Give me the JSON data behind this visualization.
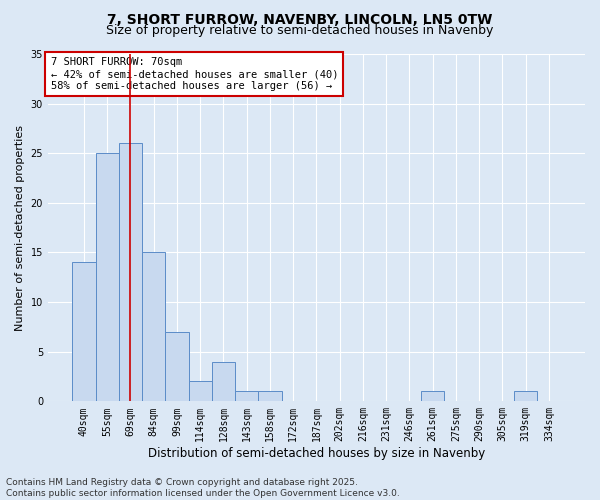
{
  "title_line1": "7, SHORT FURROW, NAVENBY, LINCOLN, LN5 0TW",
  "title_line2": "Size of property relative to semi-detached houses in Navenby",
  "categories": [
    "40sqm",
    "55sqm",
    "69sqm",
    "84sqm",
    "99sqm",
    "114sqm",
    "128sqm",
    "143sqm",
    "158sqm",
    "172sqm",
    "187sqm",
    "202sqm",
    "216sqm",
    "231sqm",
    "246sqm",
    "261sqm",
    "275sqm",
    "290sqm",
    "305sqm",
    "319sqm",
    "334sqm"
  ],
  "values": [
    14,
    25,
    26,
    15,
    7,
    2,
    4,
    1,
    1,
    0,
    0,
    0,
    0,
    0,
    0,
    1,
    0,
    0,
    0,
    1,
    0
  ],
  "bar_color": "#c8d9ef",
  "bar_edge_color": "#5b8cc8",
  "highlight_index": 2,
  "highlight_line_color": "#cc0000",
  "ylim": [
    0,
    35
  ],
  "yticks": [
    0,
    5,
    10,
    15,
    20,
    25,
    30,
    35
  ],
  "ylabel": "Number of semi-detached properties",
  "xlabel": "Distribution of semi-detached houses by size in Navenby",
  "annotation_line1": "7 SHORT FURROW: 70sqm",
  "annotation_line2": "← 42% of semi-detached houses are smaller (40)",
  "annotation_line3": "58% of semi-detached houses are larger (56) →",
  "annotation_box_color": "#ffffff",
  "annotation_box_edge_color": "#cc0000",
  "footer_text": "Contains HM Land Registry data © Crown copyright and database right 2025.\nContains public sector information licensed under the Open Government Licence v3.0.",
  "bg_color": "#dce8f5",
  "plot_bg_color": "#dce8f5",
  "grid_color": "#ffffff",
  "title_fontsize": 10,
  "subtitle_fontsize": 9,
  "tick_fontsize": 7,
  "ylabel_fontsize": 8,
  "xlabel_fontsize": 8.5,
  "annotation_fontsize": 7.5,
  "footer_fontsize": 6.5
}
